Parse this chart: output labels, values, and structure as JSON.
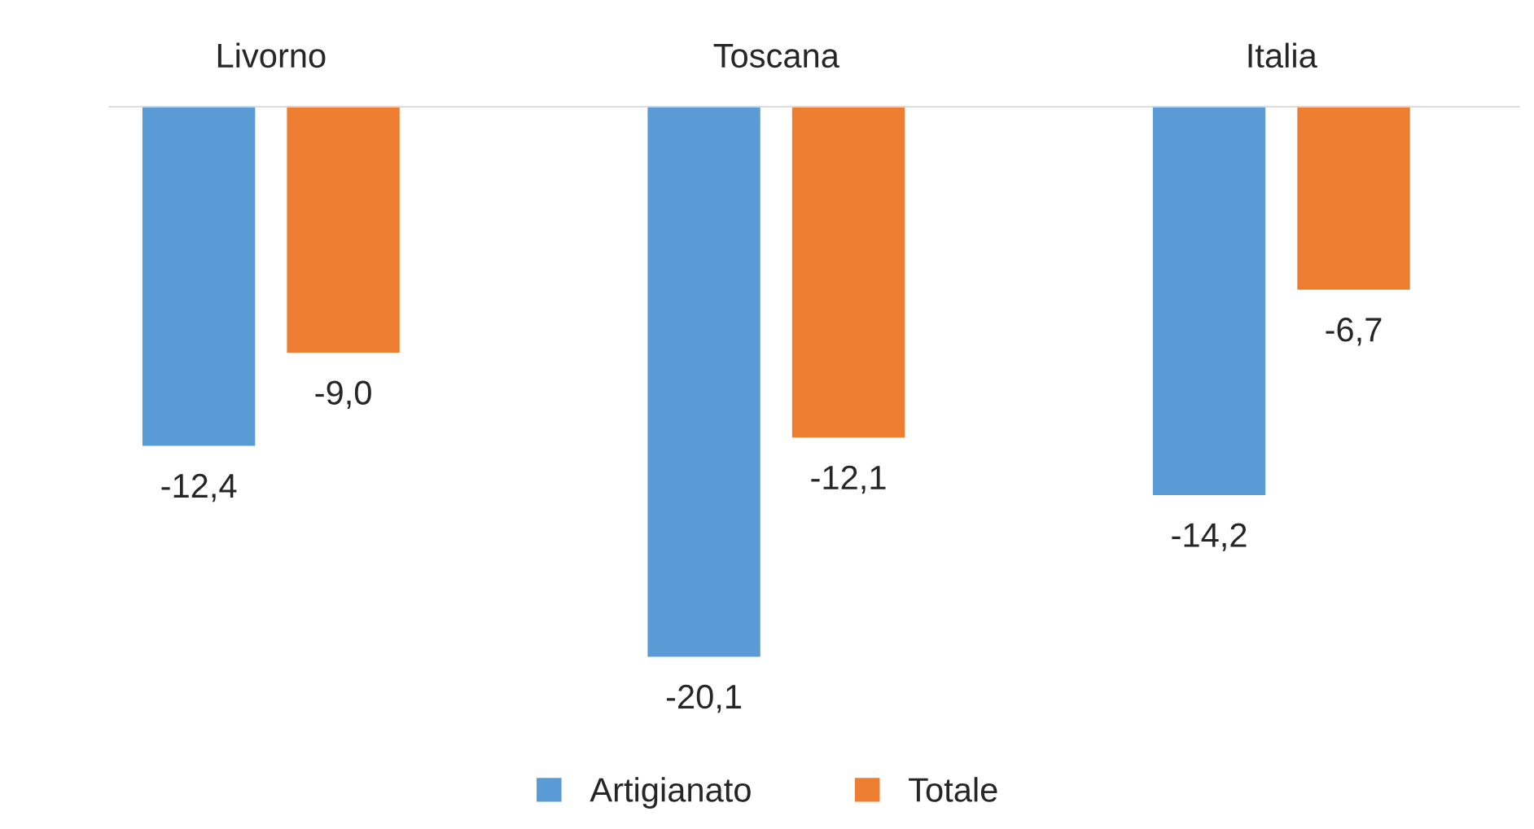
{
  "chart_data": {
    "type": "bar",
    "categories": [
      "Livorno",
      "Toscana",
      "Italia"
    ],
    "series": [
      {
        "name": "Artigianato",
        "color": "#5b9bd5",
        "values": [
          -12.4,
          -20.1,
          -14.2
        ],
        "value_labels": [
          "-12,4",
          "-20,1",
          "-14,2"
        ]
      },
      {
        "name": "Totale",
        "color": "#ed7d31",
        "values": [
          -9.0,
          -12.1,
          -6.7
        ],
        "value_labels": [
          "-9,0",
          "-12,1",
          "-6,7"
        ]
      }
    ],
    "grid": false,
    "legend": "bottom"
  }
}
